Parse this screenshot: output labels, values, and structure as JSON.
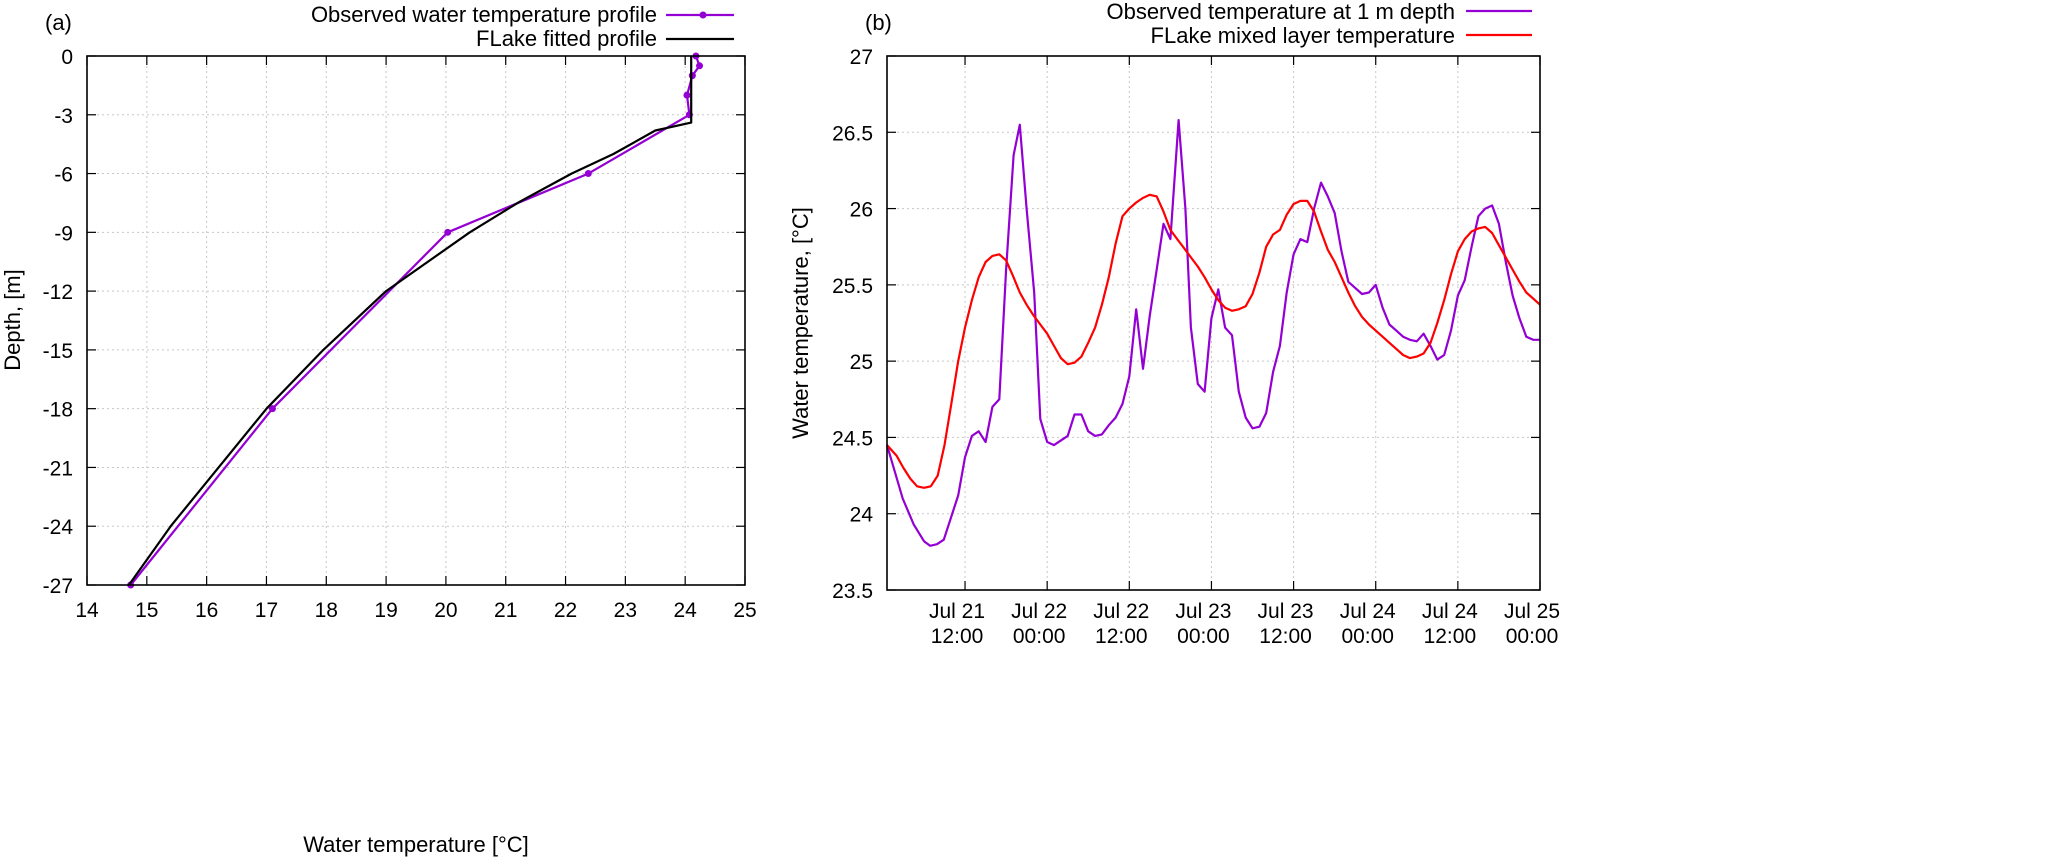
{
  "chart_data": [
    {
      "panel_label": "(a)",
      "type": "line",
      "xlabel": "Water temperature [°C]",
      "ylabel": "Depth, [m]",
      "xlim": [
        14,
        25
      ],
      "ylim": [
        -27,
        0
      ],
      "xticks": [
        14,
        15,
        16,
        17,
        18,
        19,
        20,
        21,
        22,
        23,
        24,
        25
      ],
      "yticks": [
        0,
        -3,
        -6,
        -9,
        -12,
        -15,
        -18,
        -21,
        -24,
        -27
      ],
      "grid": true,
      "legend_position": "top-right",
      "series": [
        {
          "name": "Observed water temperature profile",
          "color": "#9400d3",
          "markers": true,
          "x": [
            24.18,
            24.24,
            24.12,
            24.03,
            24.07,
            22.38,
            20.03,
            17.1,
            14.73
          ],
          "y": [
            0,
            -0.5,
            -1,
            -2,
            -3,
            -6,
            -9,
            -18,
            -27
          ]
        },
        {
          "name": "FLake fitted profile",
          "color": "#000000",
          "markers": false,
          "x": [
            24.1,
            24.1,
            23.5,
            22.8,
            22.1,
            21.2,
            20.4,
            19.0,
            17.95,
            17.0,
            16.2,
            15.4,
            14.7
          ],
          "y": [
            0,
            -3.4,
            -3.8,
            -5,
            -6,
            -7.5,
            -9,
            -12,
            -15,
            -18,
            -21,
            -24,
            -27
          ]
        }
      ]
    },
    {
      "panel_label": "(b)",
      "type": "line",
      "xlabel": "",
      "ylabel": "Water temperature, [°C]",
      "x_units": "hours since Jul 21 00:00",
      "xlim": [
        0.6,
        96
      ],
      "ylim": [
        23.5,
        27
      ],
      "xticks": [
        12,
        24,
        36,
        48,
        60,
        72,
        84,
        96
      ],
      "xtick_labels": [
        [
          "Jul 21",
          "12:00"
        ],
        [
          "Jul 22",
          "00:00"
        ],
        [
          "Jul 22",
          "12:00"
        ],
        [
          "Jul 23",
          "00:00"
        ],
        [
          "Jul 23",
          "12:00"
        ],
        [
          "Jul 24",
          "00:00"
        ],
        [
          "Jul 24",
          "12:00"
        ],
        [
          "Jul 25",
          "00:00"
        ]
      ],
      "yticks": [
        "23.5",
        "24",
        "24.5",
        "25",
        "25.5",
        "26",
        "26.5",
        "27"
      ],
      "grid": true,
      "legend_position": "top-right",
      "series": [
        {
          "name": "Observed temperature at 1 m depth",
          "color": "#9400d3",
          "x": [
            0.6,
            2.9,
            4.5,
            6,
            6.9,
            7.9,
            8.9,
            11,
            12,
            13,
            14,
            15,
            16,
            17,
            18,
            19.1,
            20,
            21,
            22.1,
            23,
            24,
            25,
            27,
            28,
            29,
            30,
            31,
            32,
            33,
            34,
            35,
            36,
            37,
            38,
            39,
            40,
            41,
            42,
            43.2,
            44.2,
            45,
            46,
            47,
            48,
            49,
            50,
            51,
            52,
            53,
            54,
            55,
            56,
            57,
            58,
            59,
            60,
            61,
            62,
            63,
            64,
            65,
            66,
            67,
            68,
            69,
            70,
            71,
            72,
            73,
            74,
            75,
            76,
            77,
            78,
            79,
            80,
            81,
            82,
            83,
            84,
            85,
            86,
            87,
            88,
            89,
            90,
            91,
            92,
            93,
            94,
            95,
            96
          ],
          "y": [
            24.45,
            24.1,
            23.93,
            23.82,
            23.79,
            23.8,
            23.83,
            24.12,
            24.37,
            24.51,
            24.54,
            24.47,
            24.7,
            24.75,
            25.6,
            26.35,
            26.55,
            26.0,
            25.45,
            24.62,
            24.47,
            24.45,
            24.51,
            24.65,
            24.65,
            24.54,
            24.51,
            24.52,
            24.58,
            24.63,
            24.72,
            24.9,
            25.34,
            24.95,
            25.3,
            25.6,
            25.9,
            25.8,
            26.58,
            26.0,
            25.22,
            24.85,
            24.8,
            25.28,
            25.47,
            25.22,
            25.17,
            24.8,
            24.63,
            24.56,
            24.57,
            24.66,
            24.93,
            25.1,
            25.45,
            25.7,
            25.8,
            25.78,
            26.0,
            26.17,
            26.08,
            25.97,
            25.72,
            25.52,
            25.48,
            25.44,
            25.45,
            25.5,
            25.35,
            25.24,
            25.2,
            25.16,
            25.14,
            25.13,
            25.18,
            25.1,
            25.01,
            25.04,
            25.2,
            25.43,
            25.53,
            25.75,
            25.95,
            26.0,
            26.02,
            25.9,
            25.65,
            25.43,
            25.28,
            25.16,
            25.14,
            25.14
          ]
        },
        {
          "name": "FLake mixed layer temperature",
          "color": "#ff0000",
          "x": [
            0.6,
            2,
            3,
            4,
            5,
            6,
            7,
            8,
            9,
            10,
            11,
            12,
            13,
            14,
            15,
            16,
            17,
            18,
            19,
            20,
            21,
            22,
            23,
            24,
            25,
            26,
            27,
            28,
            29,
            30,
            31,
            32,
            33,
            34,
            35,
            36,
            37,
            38,
            39,
            40,
            41,
            42,
            43,
            44,
            45,
            46,
            47,
            48,
            49,
            50,
            51,
            52,
            53,
            54,
            55,
            56,
            57,
            58,
            59,
            60,
            61,
            62,
            63,
            64,
            65,
            66,
            67,
            68,
            69,
            70,
            71,
            72,
            73,
            74,
            75,
            76,
            77,
            78,
            79,
            80,
            81,
            82,
            83,
            84,
            85,
            86,
            87,
            88,
            89,
            90,
            91,
            92,
            93,
            94,
            95,
            96
          ],
          "y": [
            24.45,
            24.38,
            24.3,
            24.23,
            24.18,
            24.17,
            24.18,
            24.25,
            24.45,
            24.72,
            25.0,
            25.22,
            25.4,
            25.55,
            25.65,
            25.69,
            25.7,
            25.66,
            25.56,
            25.45,
            25.37,
            25.3,
            25.24,
            25.18,
            25.1,
            25.02,
            24.98,
            24.99,
            25.03,
            25.12,
            25.22,
            25.37,
            25.55,
            25.77,
            25.95,
            26.0,
            26.04,
            26.07,
            26.09,
            26.08,
            25.98,
            25.86,
            25.8,
            25.74,
            25.68,
            25.62,
            25.55,
            25.47,
            25.4,
            25.35,
            25.33,
            25.34,
            25.36,
            25.44,
            25.58,
            25.75,
            25.83,
            25.86,
            25.96,
            26.03,
            26.05,
            26.05,
            25.98,
            25.85,
            25.73,
            25.65,
            25.55,
            25.45,
            25.36,
            25.29,
            25.24,
            25.2,
            25.16,
            25.12,
            25.08,
            25.04,
            25.02,
            25.03,
            25.05,
            25.12,
            25.25,
            25.4,
            25.57,
            25.72,
            25.8,
            25.85,
            25.87,
            25.88,
            25.84,
            25.76,
            25.68,
            25.6,
            25.52,
            25.45,
            25.41,
            25.37
          ]
        }
      ]
    }
  ]
}
